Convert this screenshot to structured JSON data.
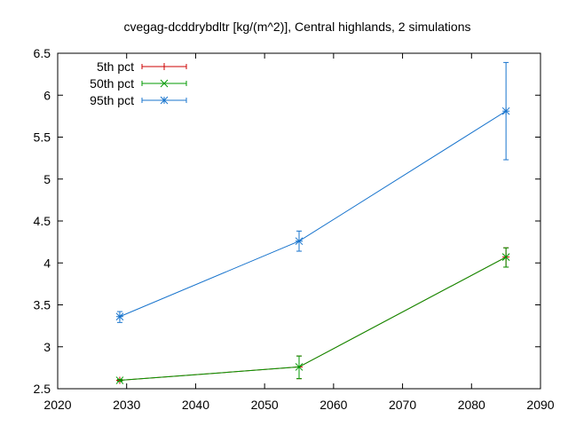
{
  "chart_data": {
    "type": "line",
    "title": "cvegag-dcddrybdltr [kg/(m^2)], Central highlands, 2 simulations",
    "xlabel": "",
    "ylabel": "",
    "xlim": [
      2020,
      2090
    ],
    "ylim": [
      2.5,
      6.5
    ],
    "xticks": [
      2020,
      2030,
      2040,
      2050,
      2060,
      2070,
      2080,
      2090
    ],
    "yticks": [
      2.5,
      3,
      3.5,
      4,
      4.5,
      5,
      5.5,
      6,
      6.5
    ],
    "xtick_labels": [
      "2020",
      "2030",
      "2040",
      "2050",
      "2060",
      "2070",
      "2080",
      "2090"
    ],
    "ytick_labels": [
      "2.5",
      "3",
      "3.5",
      "4",
      "4.5",
      "5",
      "5.5",
      "6",
      "6.5"
    ],
    "grid": false,
    "legend_position": "top-left",
    "series": [
      {
        "name": "5th pct",
        "color": "#cc0000",
        "marker": "plus",
        "x": [
          2029,
          2055,
          2085
        ],
        "y": [
          2.6,
          2.76,
          4.07
        ],
        "err_low": [
          2.59,
          2.62,
          3.95
        ],
        "err_high": [
          2.61,
          2.89,
          4.18
        ]
      },
      {
        "name": "50th pct",
        "color": "#009900",
        "marker": "cross",
        "x": [
          2029,
          2055,
          2085
        ],
        "y": [
          2.6,
          2.76,
          4.07
        ],
        "err_low": [
          2.59,
          2.62,
          3.95
        ],
        "err_high": [
          2.61,
          2.89,
          4.18
        ]
      },
      {
        "name": "95th pct",
        "color": "#1874cd",
        "marker": "star",
        "x": [
          2029,
          2055,
          2085
        ],
        "y": [
          3.36,
          4.26,
          5.81
        ],
        "err_low": [
          3.29,
          4.14,
          5.23
        ],
        "err_high": [
          3.42,
          4.38,
          6.39
        ]
      }
    ]
  }
}
